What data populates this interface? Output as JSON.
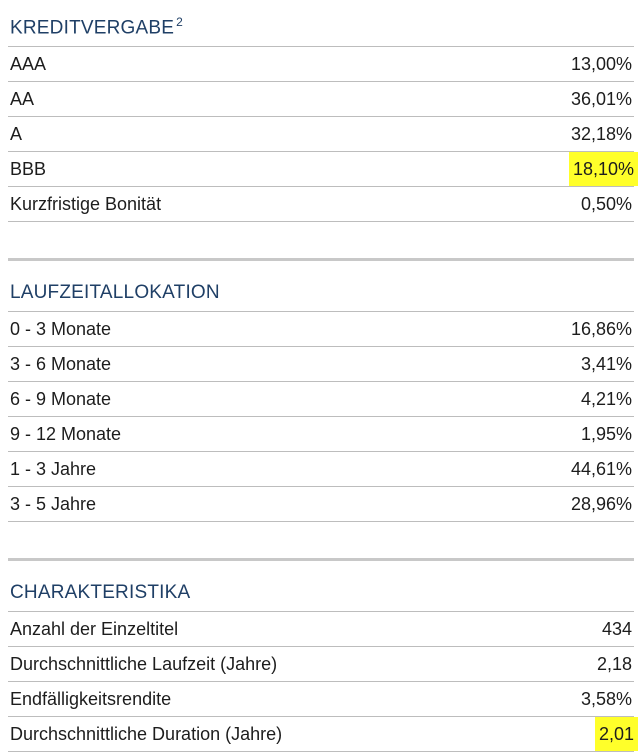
{
  "kreditvergabe": {
    "title": "KREDITVERGABE",
    "superscript": "2",
    "rows": [
      {
        "label": "AAA",
        "value": "13,00%"
      },
      {
        "label": "AA",
        "value": "36,01%"
      },
      {
        "label": "A",
        "value": "32,18%"
      },
      {
        "label": "BBB",
        "value": "18,10%"
      },
      {
        "label": "Kurzfristige Bonität",
        "value": "0,50%"
      }
    ]
  },
  "laufzeitallokation": {
    "title": "LAUFZEITALLOKATION",
    "rows": [
      {
        "label": "0 - 3 Monate",
        "value": "16,86%"
      },
      {
        "label": "3 - 6 Monate",
        "value": "3,41%"
      },
      {
        "label": "6 - 9 Monate",
        "value": "4,21%"
      },
      {
        "label": "9 - 12 Monate",
        "value": "1,95%"
      },
      {
        "label": "1 - 3 Jahre",
        "value": "44,61%"
      },
      {
        "label": "3 - 5 Jahre",
        "value": "28,96%"
      }
    ]
  },
  "charakteristika": {
    "title": "CHARAKTERISTIKA",
    "rows": [
      {
        "label": "Anzahl der Einzeltitel",
        "value": "434"
      },
      {
        "label": "Durchschnittliche Laufzeit (Jahre)",
        "value": "2,18"
      },
      {
        "label": "Endfälligkeitsrendite",
        "value": "3,58%"
      },
      {
        "label": "Durchschnittliche Duration (Jahre)",
        "value": "2,01"
      }
    ]
  },
  "colors": {
    "heading": "#1f3f66",
    "highlight": "#ffff2a",
    "divider": "#bdbdbd",
    "section_separator": "#c8c8c8"
  }
}
